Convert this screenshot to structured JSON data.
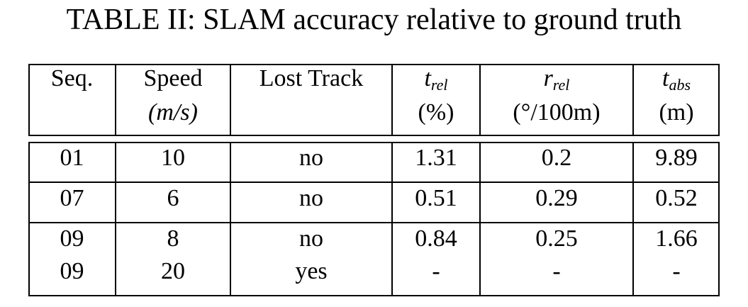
{
  "title": "TABLE II: SLAM accuracy relative to ground truth",
  "table": {
    "header": [
      {
        "label": "Seq."
      },
      {
        "label": "Speed",
        "unit": "(m/s)"
      },
      {
        "label": "Lost Track"
      },
      {
        "symbol": "t",
        "subscript": "rel",
        "unit": "(%)"
      },
      {
        "symbol": "r",
        "subscript": "rel",
        "unit": "(°/100m)"
      },
      {
        "symbol": "t",
        "subscript": "abs",
        "unit": "(m)"
      }
    ],
    "groups": [
      [
        [
          "01",
          "10",
          "no",
          "1.31",
          "0.2",
          "9.89"
        ]
      ],
      [
        [
          "07",
          "6",
          "no",
          "0.51",
          "0.29",
          "0.52"
        ]
      ],
      [
        [
          "09",
          "8",
          "no",
          "0.84",
          "0.25",
          "1.66"
        ],
        [
          "09",
          "20",
          "yes",
          "-",
          "-",
          "-"
        ]
      ]
    ]
  }
}
